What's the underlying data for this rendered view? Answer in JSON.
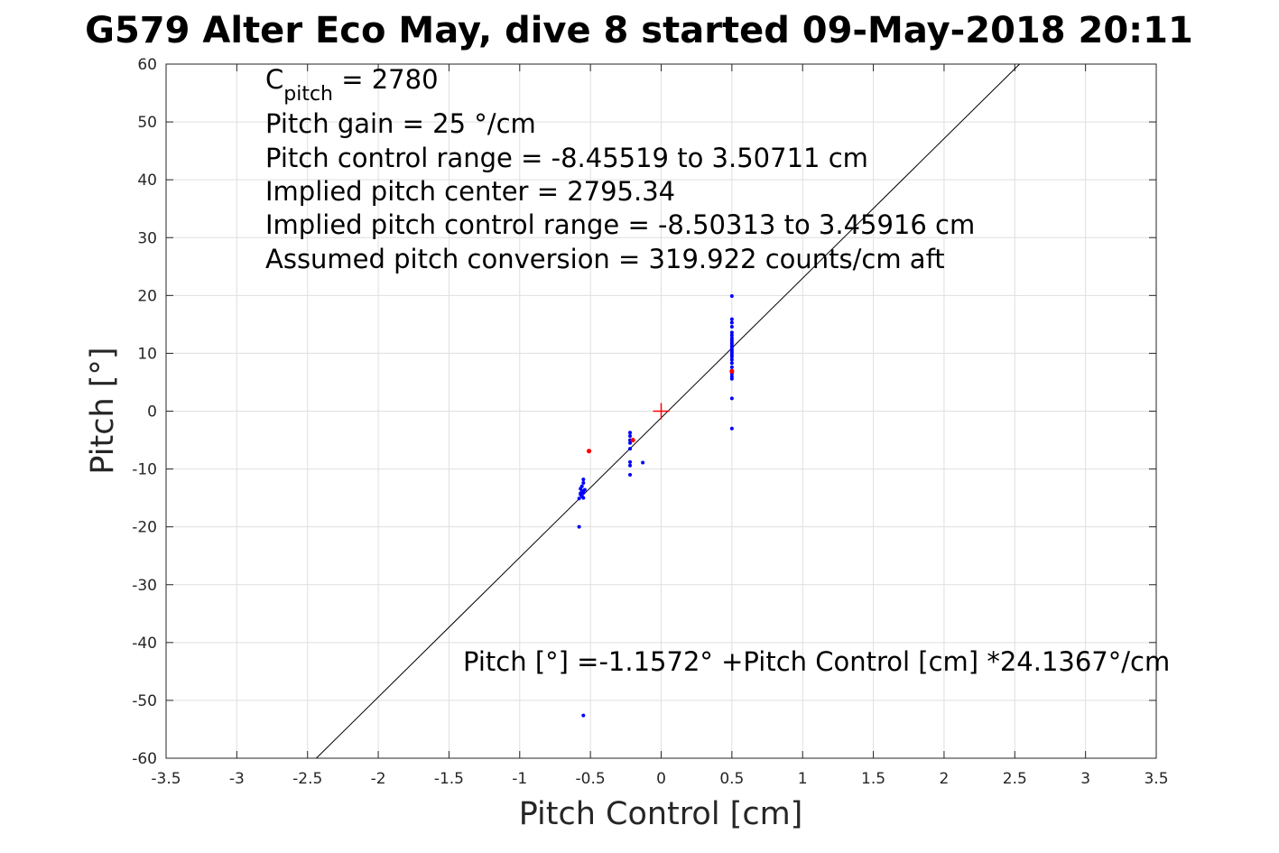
{
  "chart_data": {
    "type": "scatter",
    "title": "G579 Alter Eco May, dive 8 started 09-May-2018 20:11",
    "xlabel": "Pitch Control [cm]",
    "ylabel": "Pitch [°]",
    "xlim": [
      -3.5,
      3.5
    ],
    "ylim": [
      -60,
      60
    ],
    "xticks": [
      -3.5,
      -3,
      -2.5,
      -2,
      -1.5,
      -1,
      -0.5,
      0,
      0.5,
      1,
      1.5,
      2,
      2.5,
      3,
      3.5
    ],
    "xtick_labels": [
      "-3.5",
      "-3",
      "-2.5",
      "-2",
      "-1.5",
      "-1",
      "-0.5",
      "0",
      "0.5",
      "1",
      "1.5",
      "2",
      "2.5",
      "3",
      "3.5"
    ],
    "yticks": [
      60,
      50,
      40,
      30,
      20,
      10,
      0,
      -10,
      -20,
      -30,
      -40,
      -50,
      -60
    ],
    "ytick_labels": [
      "60",
      "50",
      "40",
      "30",
      "20",
      "10",
      "0",
      "-10",
      "-20",
      "-30",
      "-40",
      "-50",
      "-60"
    ],
    "grid": true,
    "annotations_top": {
      "c_pitch_main": "C",
      "c_pitch_sub": "pitch",
      "c_pitch_rest": " = 2780",
      "gain": "Pitch gain = 25 °/cm",
      "range": "Pitch control range = -8.45519 to 3.50711 cm",
      "center": "Implied pitch center = 2795.34",
      "implied_range": "Implied pitch control range = -8.50313 to 3.45916 cm",
      "conversion": "Assumed pitch conversion = 319.922 counts/cm aft"
    },
    "fit_label": "Pitch [°] =-1.1572° +Pitch Control [cm] *24.1367°/cm",
    "fit_line": {
      "intercept": -1.1572,
      "slope": 24.1367,
      "color": "#000000"
    },
    "center_marker": {
      "x": 0,
      "y": 0,
      "color": "#ff0000",
      "marker": "plus"
    },
    "series": [
      {
        "color": "#0000ff",
        "points": [
          [
            0.5,
            19.9
          ],
          [
            0.5,
            15.9
          ],
          [
            0.5,
            15.3
          ],
          [
            0.5,
            14.6
          ],
          [
            0.5,
            13.6
          ],
          [
            0.5,
            13.1
          ],
          [
            0.5,
            12.6
          ],
          [
            0.5,
            12.2
          ],
          [
            0.5,
            11.8
          ],
          [
            0.5,
            11.4
          ],
          [
            0.5,
            11.0
          ],
          [
            0.5,
            10.6
          ],
          [
            0.5,
            10.2
          ],
          [
            0.5,
            9.8
          ],
          [
            0.5,
            9.4
          ],
          [
            0.5,
            8.9
          ],
          [
            0.5,
            8.3
          ],
          [
            0.5,
            7.6
          ],
          [
            0.5,
            7.0
          ],
          [
            0.5,
            6.5
          ],
          [
            0.5,
            6.0
          ],
          [
            0.5,
            5.6
          ],
          [
            0.5,
            2.2
          ],
          [
            0.5,
            -3.0
          ],
          [
            -0.22,
            -3.7
          ],
          [
            -0.22,
            -4.3
          ],
          [
            -0.22,
            -5.0
          ],
          [
            -0.22,
            -5.5
          ],
          [
            -0.22,
            -6.5
          ],
          [
            -0.22,
            -8.8
          ],
          [
            -0.22,
            -9.4
          ],
          [
            -0.22,
            -11.0
          ],
          [
            -0.13,
            -8.9
          ],
          [
            -0.55,
            -11.8
          ],
          [
            -0.55,
            -12.4
          ],
          [
            -0.56,
            -13.0
          ],
          [
            -0.57,
            -13.4
          ],
          [
            -0.56,
            -13.8
          ],
          [
            -0.55,
            -14.1
          ],
          [
            -0.57,
            -14.4
          ],
          [
            -0.56,
            -14.7
          ],
          [
            -0.55,
            -15.0
          ],
          [
            -0.57,
            -14.2
          ],
          [
            -0.54,
            -13.6
          ],
          [
            -0.58,
            -15.1
          ],
          [
            -0.58,
            -20.0
          ],
          [
            -0.55,
            -52.6
          ]
        ]
      },
      {
        "color": "#ff0000",
        "points": [
          [
            -0.51,
            -6.9
          ],
          [
            0.5,
            6.9
          ],
          [
            -0.2,
            -5.0
          ]
        ]
      }
    ]
  }
}
